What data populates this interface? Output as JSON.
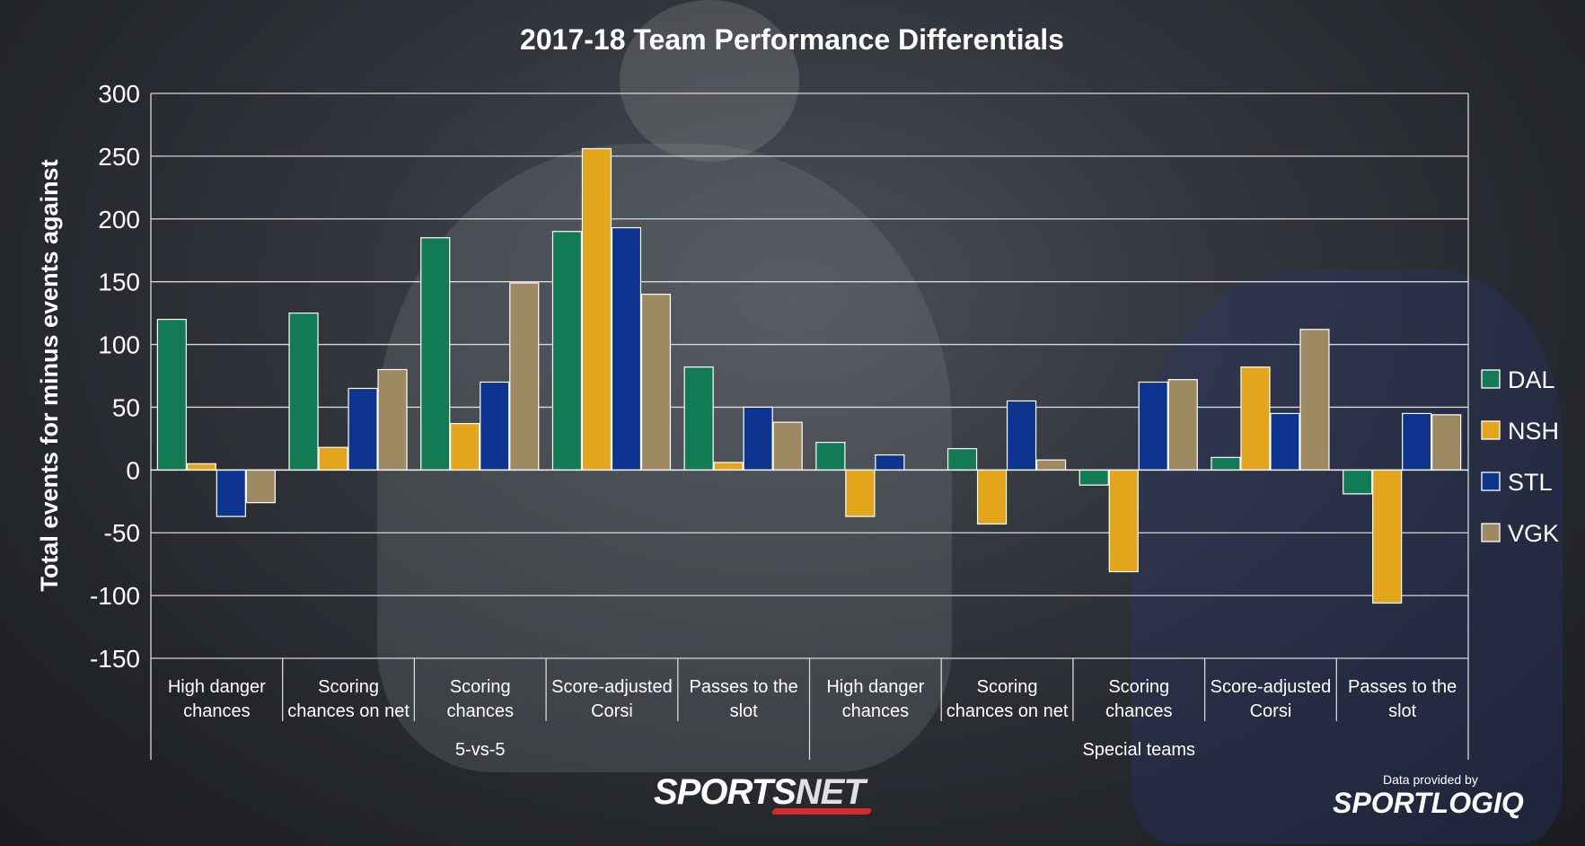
{
  "chart_data": {
    "type": "bar",
    "title": "2017-18 Team Performance Differentials",
    "ylabel": "Total events for minus events against",
    "ylim": [
      -150,
      300
    ],
    "yticks": [
      300,
      250,
      200,
      150,
      100,
      50,
      0,
      -50,
      -100,
      -150
    ],
    "grid": true,
    "legend_position": "right",
    "categories": [
      "High danger chances",
      "Scoring chances on net",
      "Scoring chances",
      "Score-adjusted Corsi",
      "Passes to the slot",
      "High danger chances",
      "Scoring chances on net",
      "Scoring chances",
      "Score-adjusted Corsi",
      "Passes to the slot"
    ],
    "category_lines": [
      [
        "High danger",
        "chances"
      ],
      [
        "Scoring",
        "chances on net"
      ],
      [
        "Scoring",
        "chances"
      ],
      [
        "Score-adjusted",
        "Corsi"
      ],
      [
        "Passes to the",
        "slot"
      ],
      [
        "High danger",
        "chances"
      ],
      [
        "Scoring",
        "chances on net"
      ],
      [
        "Scoring",
        "chances"
      ],
      [
        "Score-adjusted",
        "Corsi"
      ],
      [
        "Passes to the",
        "slot"
      ]
    ],
    "groups": [
      {
        "label": "5-vs-5",
        "start": 0,
        "count": 5
      },
      {
        "label": "Special teams",
        "start": 5,
        "count": 5
      }
    ],
    "series": [
      {
        "name": "DAL",
        "color": "#127a55",
        "values": [
          120,
          125,
          185,
          190,
          82,
          22,
          17,
          -12,
          10,
          -19
        ]
      },
      {
        "name": "NSH",
        "color": "#e3a51b",
        "values": [
          5,
          18,
          37,
          256,
          6,
          -37,
          -43,
          -81,
          82,
          -106
        ]
      },
      {
        "name": "STL",
        "color": "#0d3590",
        "values": [
          -37,
          65,
          70,
          193,
          50,
          12,
          55,
          70,
          45,
          45
        ]
      },
      {
        "name": "VGK",
        "color": "#9d8a63",
        "values": [
          -26,
          80,
          149,
          140,
          38,
          0,
          8,
          72,
          112,
          44
        ]
      }
    ]
  },
  "branding": {
    "sportsnet_main": "SPORTS",
    "sportsnet_accent": "NET",
    "data_credit": "Data provided by",
    "sportlogiq": "SPORTLOGIQ"
  }
}
